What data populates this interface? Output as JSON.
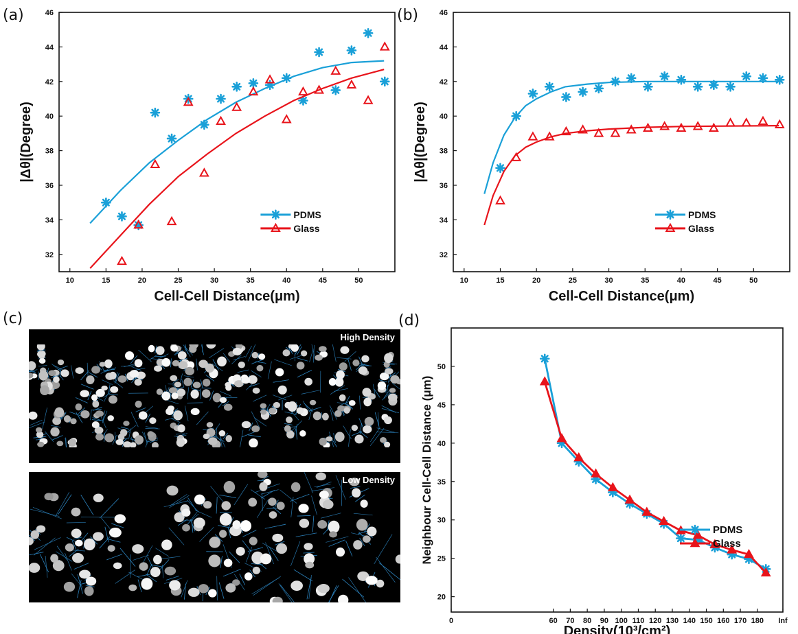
{
  "panels": {
    "a": "(a)",
    "b": "(b)",
    "c": "(c)",
    "d": "(d)"
  },
  "colors": {
    "pdms": "#1aa0d8",
    "glass": "#e8141b",
    "voronoi": "#2b7fb8"
  },
  "micrographs": {
    "high_label": "High Density",
    "low_label": "Low Density"
  },
  "chart_data": [
    {
      "id": "a",
      "type": "scatter",
      "xlabel": "Cell-Cell Distance(μm)",
      "ylabel": "|Δθ|(Degree)",
      "xlim": [
        8.5,
        55
      ],
      "ylim": [
        31,
        46
      ],
      "xticks": [
        10,
        15,
        20,
        25,
        30,
        35,
        40,
        45,
        50
      ],
      "yticks": [
        32,
        34,
        36,
        38,
        40,
        42,
        44,
        46
      ],
      "legend": "center-right",
      "series": [
        {
          "name": "PDMS",
          "marker": "asterisk",
          "color": "#1aa0d8",
          "x": [
            15,
            17.2,
            19.5,
            21.8,
            24.1,
            26.4,
            28.6,
            30.9,
            33.1,
            35.4,
            37.7,
            40,
            42.3,
            44.5,
            46.8,
            49,
            51.3,
            53.6
          ],
          "y": [
            35,
            34.2,
            33.7,
            40.2,
            38.7,
            41,
            39.5,
            41,
            41.7,
            41.9,
            41.8,
            42.2,
            40.9,
            43.7,
            41.5,
            43.8,
            44.8,
            42
          ],
          "fit_x": [
            12.8,
            17,
            21,
            25,
            29,
            33,
            37,
            41,
            45,
            49,
            53.5
          ],
          "fit_y": [
            33.8,
            35.7,
            37.3,
            38.6,
            39.8,
            40.8,
            41.6,
            42.3,
            42.8,
            43.1,
            43.2
          ]
        },
        {
          "name": "Glass",
          "marker": "triangle",
          "color": "#e8141b",
          "x": [
            17.2,
            19.5,
            21.8,
            24.1,
            26.4,
            28.6,
            30.9,
            33.1,
            35.4,
            37.7,
            40,
            42.3,
            44.5,
            46.8,
            49,
            51.3,
            53.6
          ],
          "y": [
            31.6,
            33.7,
            37.2,
            33.9,
            40.8,
            36.7,
            39.7,
            40.5,
            41.4,
            42.1,
            39.8,
            41.4,
            41.5,
            42.6,
            41.8,
            40.9,
            44
          ],
          "fit_x": [
            12.8,
            17,
            21,
            25,
            29,
            33,
            37,
            41,
            45,
            49,
            53.5
          ],
          "fit_y": [
            31.2,
            33.1,
            34.9,
            36.5,
            37.8,
            39,
            40,
            40.9,
            41.6,
            42.2,
            42.7
          ]
        }
      ]
    },
    {
      "id": "b",
      "type": "scatter",
      "xlabel": "Cell-Cell Distance(μm)",
      "ylabel": "|Δθ|(Degree)",
      "xlim": [
        8.5,
        55
      ],
      "ylim": [
        31,
        46
      ],
      "xticks": [
        10,
        15,
        20,
        25,
        30,
        35,
        40,
        45,
        50
      ],
      "yticks": [
        32,
        34,
        36,
        38,
        40,
        42,
        44,
        46
      ],
      "legend": "center-right",
      "series": [
        {
          "name": "PDMS",
          "marker": "asterisk",
          "color": "#1aa0d8",
          "x": [
            15,
            17.2,
            19.5,
            21.8,
            24.1,
            26.4,
            28.6,
            30.9,
            33.1,
            35.4,
            37.7,
            40,
            42.3,
            44.5,
            46.8,
            49,
            51.3,
            53.6
          ],
          "y": [
            37,
            40,
            41.3,
            41.7,
            41.1,
            41.4,
            41.6,
            42,
            42.2,
            41.7,
            42.3,
            42.1,
            41.7,
            41.8,
            41.7,
            42.3,
            42.2,
            42.1
          ],
          "fit_x": [
            12.8,
            14,
            15.5,
            17,
            18.5,
            20,
            22,
            24,
            27,
            30,
            35,
            40,
            45,
            53.5
          ],
          "fit_y": [
            35.5,
            37.3,
            38.9,
            39.9,
            40.6,
            41,
            41.4,
            41.7,
            41.85,
            41.95,
            42,
            42,
            42,
            42
          ]
        },
        {
          "name": "Glass",
          "marker": "triangle",
          "color": "#e8141b",
          "x": [
            15,
            17.2,
            19.5,
            21.8,
            24.1,
            26.4,
            28.6,
            30.9,
            33.1,
            35.4,
            37.7,
            40,
            42.3,
            44.5,
            46.8,
            49,
            51.3,
            53.6
          ],
          "y": [
            35.1,
            37.6,
            38.8,
            38.8,
            39.1,
            39.2,
            39,
            39,
            39.2,
            39.3,
            39.4,
            39.3,
            39.4,
            39.3,
            39.6,
            39.6,
            39.7,
            39.5
          ],
          "fit_x": [
            12.8,
            14,
            15.5,
            17,
            18.5,
            20,
            22,
            24,
            27,
            30,
            35,
            40,
            45,
            53.5
          ],
          "fit_y": [
            33.7,
            35.4,
            36.8,
            37.7,
            38.2,
            38.5,
            38.8,
            39,
            39.15,
            39.25,
            39.35,
            39.4,
            39.42,
            39.45
          ]
        }
      ]
    },
    {
      "id": "d",
      "type": "line",
      "xlabel": "Density(10³/cm²)",
      "ylabel": "Neighbour Cell-Cell Distance (μm)",
      "xlim": [
        0,
        195
      ],
      "ylim": [
        18,
        55
      ],
      "xtick_labels": [
        "0",
        "60",
        "70",
        "80",
        "90",
        "100",
        "110",
        "120",
        "130",
        "140",
        "150",
        "160",
        "170",
        "180",
        "Inf"
      ],
      "yticks": [
        20,
        25,
        30,
        35,
        40,
        45,
        50
      ],
      "legend": "lower-right",
      "series": [
        {
          "name": "PDMS",
          "marker": "asterisk",
          "color": "#1aa0d8",
          "x": [
            55,
            65,
            75,
            85,
            95,
            105,
            115,
            125,
            135,
            145,
            155,
            165,
            175,
            185
          ],
          "y": [
            51,
            40,
            37.6,
            35.3,
            33.6,
            32.1,
            30.8,
            29.5,
            27.6,
            27.4,
            26.4,
            25.5,
            24.9,
            23.6
          ]
        },
        {
          "name": "Glass",
          "marker": "triangle",
          "color": "#e8141b",
          "x": [
            55,
            65,
            75,
            85,
            95,
            105,
            115,
            125,
            135,
            145,
            155,
            165,
            175,
            185
          ],
          "y": [
            48,
            40.6,
            38.1,
            36,
            34.2,
            32.6,
            31,
            29.8,
            28.6,
            28,
            26.8,
            26.1,
            25.5,
            23.1
          ]
        }
      ]
    }
  ]
}
